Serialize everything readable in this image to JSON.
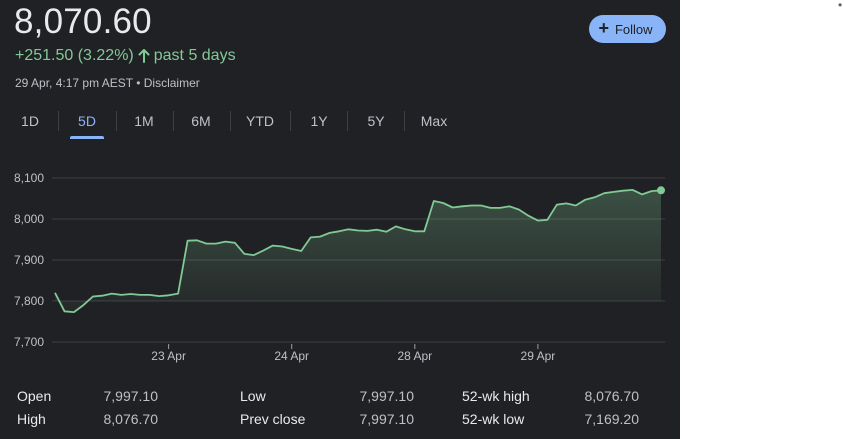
{
  "quote": {
    "price": "8,070.60",
    "change": "+251.50 (3.22%)",
    "period": "past 5 days",
    "timestamp": "29 Apr, 4:17 pm AEST",
    "separator": "•",
    "disclaimer": "Disclaimer"
  },
  "follow_button": {
    "label": "Follow"
  },
  "tabs": [
    {
      "label": "1D",
      "active": false
    },
    {
      "label": "5D",
      "active": true
    },
    {
      "label": "1M",
      "active": false
    },
    {
      "label": "6M",
      "active": false
    },
    {
      "label": "YTD",
      "active": false
    },
    {
      "label": "1Y",
      "active": false
    },
    {
      "label": "5Y",
      "active": false
    },
    {
      "label": "Max",
      "active": false
    }
  ],
  "colors": {
    "line": "#81c995",
    "accent": "#8ab4f8",
    "background": "#202124",
    "grid": "#3c4043"
  },
  "chart_data": {
    "type": "area",
    "ylim": [
      7700,
      8100
    ],
    "y_ticks": [
      "8,100",
      "8,000",
      "7,900",
      "7,800",
      "7,700"
    ],
    "x_tick_labels": [
      "23 Apr",
      "24 Apr",
      "28 Apr",
      "29 Apr"
    ],
    "x_tick_indices": [
      12,
      25,
      38,
      51
    ],
    "values": [
      7820,
      7775,
      7773,
      7790,
      7811,
      7813,
      7818,
      7815,
      7817,
      7815,
      7815,
      7812,
      7814,
      7818,
      7947,
      7948,
      7940,
      7940,
      7945,
      7942,
      7915,
      7912,
      7923,
      7935,
      7933,
      7927,
      7922,
      7955,
      7957,
      7966,
      7970,
      7975,
      7972,
      7971,
      7974,
      7969,
      7982,
      7975,
      7970,
      7970,
      8044,
      8039,
      8028,
      8031,
      8033,
      8033,
      8027,
      8027,
      8031,
      8023,
      8008,
      7996,
      7998,
      8035,
      8038,
      8033,
      8047,
      8053,
      8063,
      8066,
      8069,
      8071,
      8060,
      8068,
      8070
    ],
    "grid": true,
    "last_point_marker": true
  },
  "stats": [
    {
      "label": "Open",
      "value": "7,997.10"
    },
    {
      "label": "High",
      "value": "8,076.70"
    },
    {
      "label": "Low",
      "value": "7,997.10"
    },
    {
      "label": "Prev close",
      "value": "7,997.10"
    },
    {
      "label": "52-wk high",
      "value": "8,076.70"
    },
    {
      "label": "52-wk low",
      "value": "7,169.20"
    }
  ],
  "corner_mark": "•"
}
